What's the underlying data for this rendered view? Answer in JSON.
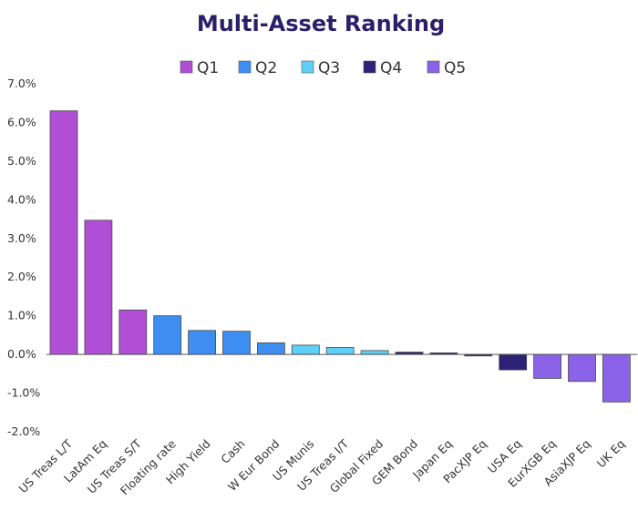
{
  "chart_data": {
    "type": "bar",
    "title": "Multi-Asset Ranking",
    "xlabel": "",
    "ylabel": "",
    "ylim": [
      -2.0,
      7.0
    ],
    "yticks": [
      "7.0%",
      "6.0%",
      "5.0%",
      "4.0%",
      "3.0%",
      "2.0%",
      "1.0%",
      "0.0%",
      "-1.0%",
      "-2.0%"
    ],
    "ytick_values": [
      7,
      6,
      5,
      4,
      3,
      2,
      1,
      0,
      -1,
      -2
    ],
    "legend_position": "top",
    "grid": false,
    "legend": [
      {
        "name": "Q1",
        "color": "#b04fd6"
      },
      {
        "name": "Q2",
        "color": "#3d8ef0"
      },
      {
        "name": "Q3",
        "color": "#5fd0f7"
      },
      {
        "name": "Q4",
        "color": "#2c2278"
      },
      {
        "name": "Q5",
        "color": "#8b63e8"
      }
    ],
    "categories": [
      "US Treas L/T",
      "LatAm Eq",
      "US Treas S/T",
      "Floating rate",
      "High Yield",
      "Cash",
      "W Eur Bond",
      "US Munis",
      "US Treas I/T",
      "Global Fixed",
      "GEM Bond",
      "Japan Eq",
      "PacXJP Eq",
      "USA Eq",
      "EurXGB Eq",
      "AsiaXJP Eq",
      "UK Eq"
    ],
    "values": [
      6.3,
      3.47,
      1.15,
      1.0,
      0.62,
      0.6,
      0.3,
      0.24,
      0.18,
      0.1,
      0.06,
      0.04,
      -0.04,
      -0.4,
      -0.62,
      -0.7,
      -1.23
    ],
    "quintile": [
      "Q1",
      "Q1",
      "Q1",
      "Q2",
      "Q2",
      "Q2",
      "Q2",
      "Q3",
      "Q3",
      "Q3",
      "Q4",
      "Q4",
      "Q4",
      "Q4",
      "Q5",
      "Q5",
      "Q5"
    ]
  }
}
